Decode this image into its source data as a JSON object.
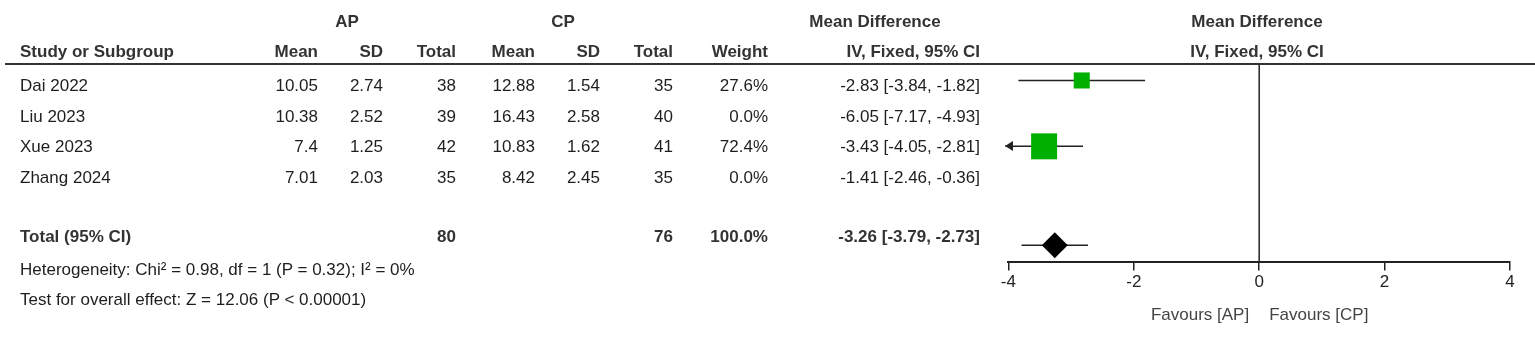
{
  "chart_data": [
    {
      "type": "other",
      "ylabel": "Study or Subgroup",
      "categories": [
        "Mean",
        "SD",
        "Total",
        "Mean",
        "SD",
        "Total",
        "Weight",
        "IV, Fixed, 95% CI"
      ],
      "y_categories": [
        "Dai 2022",
        "Liu 2023",
        "Xue 2023",
        "Zhang 2024",
        "Total (95% CI)"
      ],
      "cell_labels": [
        [
          "10.05",
          "2.74",
          "38",
          "12.88",
          "1.54",
          "35",
          "27.6%",
          "-2.83 [-3.84, -1.82]"
        ],
        [
          "10.38",
          "2.52",
          "39",
          "16.43",
          "2.58",
          "40",
          "0.0%",
          "-6.05 [-7.17, -4.93]"
        ],
        [
          "7.4",
          "1.25",
          "42",
          "10.83",
          "1.62",
          "41",
          "72.4%",
          "-3.43 [-4.05, -2.81]"
        ],
        [
          "7.01",
          "2.03",
          "35",
          "8.42",
          "2.45",
          "35",
          "0.0%",
          "-1.41 [-2.46, -0.36]"
        ],
        [
          null,
          null,
          "80",
          null,
          null,
          "76",
          "100.0%",
          "-3.26 [-3.79, -2.73]"
        ]
      ],
      "annotations": [
        "AP",
        "CP",
        "Mean Difference",
        "Heterogeneity: Chi² = 0.98, df = 1 (P = 0.32); I² = 0%",
        "Test for overall effect: Z = 12.06 (P < 0.00001)"
      ]
    },
    {
      "type": "scatter",
      "orientation": "horizontal",
      "title": "Mean Difference",
      "subtitle": "IV, Fixed, 95% CI",
      "categories": [
        null,
        null,
        null,
        null,
        null,
        null
      ],
      "xlim": [
        -4,
        4
      ],
      "xticks": [
        -4,
        -2,
        0,
        2,
        4
      ],
      "tick_labels": "x",
      "ref_lines": [
        {
          "axis": "x",
          "value": 0
        }
      ],
      "annotations": [
        "Favours [AP]",
        "Favours [CP]"
      ],
      "series": [
        {
          "type": "scatter",
          "marker": "square",
          "color": "#00b000",
          "values": [
            -2.83,
            null,
            -3.43,
            null,
            null,
            null
          ],
          "errors": [
            [
              -3.84,
              -1.82
            ],
            null,
            [
              -4.05,
              -2.81
            ],
            null,
            null,
            null
          ],
          "sizes": [
            0.381,
            null,
            1,
            null,
            null,
            null
          ]
        },
        {
          "type": "scatter",
          "marker": "diamond",
          "color": "#000000",
          "values": [
            null,
            null,
            null,
            null,
            null,
            -3.26
          ],
          "errors": [
            null,
            null,
            null,
            null,
            null,
            [
              -3.79,
              -2.73
            ]
          ]
        }
      ]
    }
  ]
}
